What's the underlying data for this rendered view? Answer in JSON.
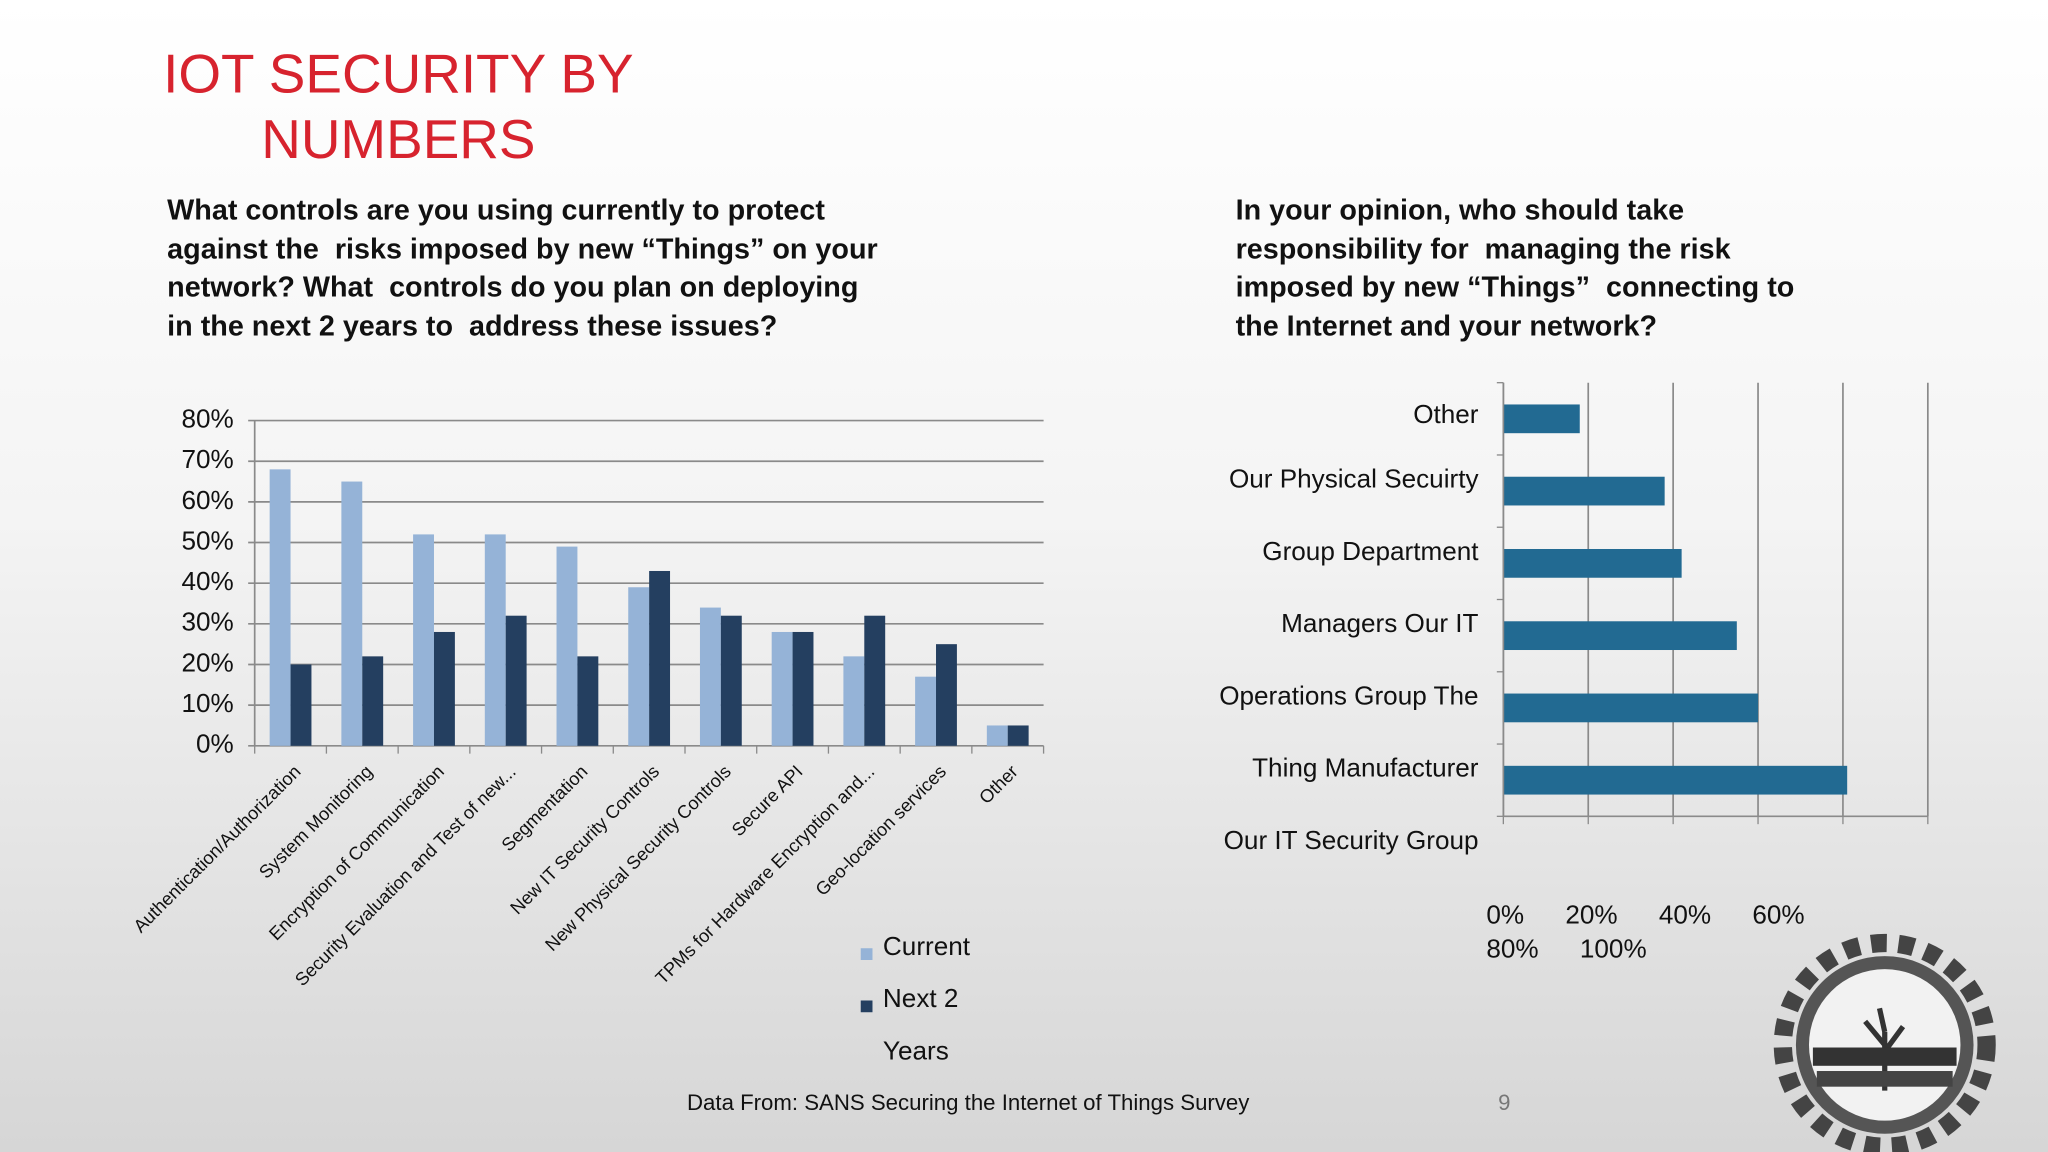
{
  "title_lines": [
    "IOT SECURITY BY",
    "NUMBERS"
  ],
  "chart_data": [
    {
      "type": "bar",
      "question_lines": [
        "What controls are you using currently to protect",
        "against the  risks imposed by new “Things” on your",
        "network? What  controls do you plan on deploying",
        "in the next 2 years to  address these issues?"
      ],
      "categories": [
        "Authentication/Authorization",
        "System Monitoring",
        "Encryption of Communication",
        "Security Evaluation and Test of new...",
        "Segmentation",
        "New IT Security Controls",
        "New Physical Security Controls",
        "Secure API",
        "TPMs for Hardware Encryption and...",
        "Geo-location services",
        "Other"
      ],
      "series": [
        {
          "name": "Current",
          "color": "#95b3d7",
          "values": [
            68,
            65,
            52,
            52,
            49,
            39,
            34,
            28,
            22,
            17,
            5
          ]
        },
        {
          "name": "Next 2 Years",
          "color": "#243f60",
          "values": [
            20,
            22,
            28,
            32,
            22,
            43,
            32,
            28,
            32,
            25,
            5
          ]
        }
      ],
      "ylim": [
        0,
        80
      ],
      "yticks": [
        {
          "value": 0,
          "label": "0%"
        },
        {
          "value": 10,
          "label": "10%"
        },
        {
          "value": 20,
          "label": "20%"
        },
        {
          "value": 30,
          "label": "30%"
        },
        {
          "value": 40,
          "label": "40%"
        },
        {
          "value": 50,
          "label": "50%"
        },
        {
          "value": 60,
          "label": "60%"
        },
        {
          "value": 70,
          "label": "70%"
        },
        {
          "value": 80,
          "label": "80%"
        }
      ],
      "grid": true
    },
    {
      "type": "barh",
      "question_lines": [
        "In your opinion, who should take",
        "responsibility for  managing the risk",
        "imposed by new “Things”  connecting to",
        "the Internet and your network?"
      ],
      "categories": [
        "Other",
        "Our Physical Secuirty",
        "Group  Department",
        "Managers  Our IT",
        "Operations Group  The",
        "Thing Manufacturer",
        "Our IT Security Group"
      ],
      "values": [
        18,
        38,
        42,
        55,
        60,
        81,
        null
      ],
      "color": "#226a92",
      "xlim": [
        0,
        100
      ],
      "xticks": [
        {
          "value": 0,
          "label": "0%"
        },
        {
          "value": 20,
          "label": "20%"
        },
        {
          "value": 40,
          "label": "40%"
        },
        {
          "value": 60,
          "label": "60%"
        },
        {
          "value": 80,
          "label": "80%"
        },
        {
          "value": 100,
          "label": "100%"
        }
      ],
      "grid": true
    }
  ],
  "footnote": "Data From: SANS Securing the Internet of Things Survey",
  "page_number": 9
}
